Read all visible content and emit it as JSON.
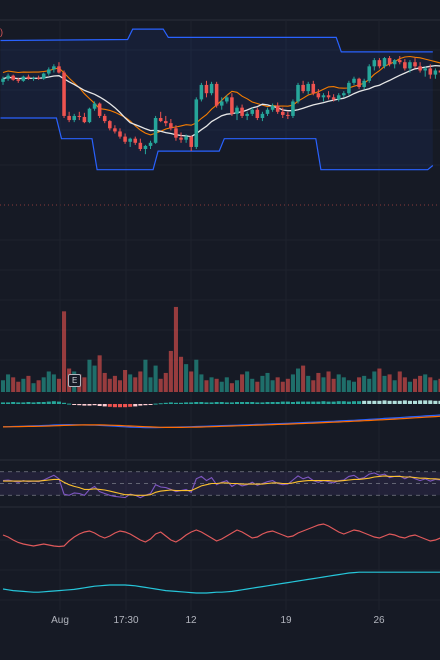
{
  "legend_fragment": ")",
  "earnings_marker": "E",
  "x_axis_labels": [
    "Aug",
    "17:30",
    "12",
    "19",
    "26"
  ],
  "colors": {
    "background": "#161a25",
    "up": "#26a69a",
    "down": "#ef5350",
    "bollinger_band": "#2962ff",
    "basis_line": "#e6e6e6",
    "envelope": "#f57c00",
    "rsi_line": "#7e57c2",
    "rsi_signal": "#fbc02d",
    "oscillator_red": "#e0595b",
    "oscillator_teal": "#26c6da",
    "macd_blue": "#2962ff",
    "macd_orange": "#ff6d00"
  },
  "chart_data": [
    {
      "type": "candlestick",
      "panel": "price",
      "note": "prices in relative units (no price scale visible)",
      "candles": [
        [
          95,
          100,
          92,
          98
        ],
        [
          98,
          103,
          96,
          101
        ],
        [
          101,
          102,
          96,
          97
        ],
        [
          97,
          99,
          94,
          96
        ],
        [
          96,
          101,
          95,
          100
        ],
        [
          100,
          102,
          97,
          98
        ],
        [
          98,
          100,
          96,
          99
        ],
        [
          99,
          101,
          97,
          98
        ],
        [
          98,
          104,
          97,
          103
        ],
        [
          103,
          109,
          101,
          107
        ],
        [
          107,
          112,
          104,
          110
        ],
        [
          110,
          114,
          103,
          104
        ],
        [
          104,
          106,
          60,
          62
        ],
        [
          62,
          66,
          56,
          58
        ],
        [
          58,
          64,
          56,
          62
        ],
        [
          62,
          66,
          58,
          61
        ],
        [
          61,
          65,
          55,
          56
        ],
        [
          56,
          70,
          55,
          69
        ],
        [
          69,
          76,
          67,
          74
        ],
        [
          74,
          75,
          60,
          62
        ],
        [
          62,
          64,
          55,
          57
        ],
        [
          57,
          58,
          48,
          50
        ],
        [
          50,
          53,
          45,
          47
        ],
        [
          47,
          50,
          40,
          42
        ],
        [
          42,
          45,
          35,
          37
        ],
        [
          37,
          41,
          32,
          40
        ],
        [
          40,
          42,
          34,
          36
        ],
        [
          36,
          40,
          28,
          30
        ],
        [
          30,
          34,
          25,
          33
        ],
        [
          33,
          38,
          30,
          36
        ],
        [
          36,
          62,
          35,
          60
        ],
        [
          60,
          66,
          56,
          57
        ],
        [
          57,
          62,
          52,
          55
        ],
        [
          55,
          59,
          48,
          50
        ],
        [
          50,
          53,
          38,
          41
        ],
        [
          41,
          46,
          36,
          39
        ],
        [
          39,
          44,
          36,
          42
        ],
        [
          42,
          43,
          28,
          32
        ],
        [
          32,
          80,
          30,
          78
        ],
        [
          78,
          94,
          76,
          92
        ],
        [
          92,
          96,
          80,
          84
        ],
        [
          84,
          95,
          82,
          93
        ],
        [
          93,
          95,
          70,
          72
        ],
        [
          72,
          80,
          68,
          76
        ],
        [
          76,
          82,
          74,
          80
        ],
        [
          80,
          84,
          62,
          64
        ],
        [
          64,
          72,
          58,
          70
        ],
        [
          70,
          73,
          60,
          62
        ],
        [
          62,
          66,
          58,
          64
        ],
        [
          64,
          70,
          62,
          68
        ],
        [
          68,
          70,
          58,
          60
        ],
        [
          60,
          66,
          57,
          64
        ],
        [
          64,
          70,
          62,
          68
        ],
        [
          68,
          74,
          66,
          72
        ],
        [
          72,
          75,
          64,
          66
        ],
        [
          66,
          70,
          60,
          63
        ],
        [
          63,
          66,
          59,
          62
        ],
        [
          62,
          78,
          60,
          76
        ],
        [
          76,
          94,
          74,
          92
        ],
        [
          92,
          96,
          84,
          86
        ],
        [
          86,
          95,
          83,
          93
        ],
        [
          93,
          96,
          82,
          84
        ],
        [
          84,
          88,
          78,
          80
        ],
        [
          80,
          84,
          76,
          82
        ],
        [
          82,
          86,
          78,
          80
        ],
        [
          80,
          83,
          76,
          78
        ],
        [
          78,
          84,
          76,
          82
        ],
        [
          82,
          86,
          80,
          84
        ],
        [
          84,
          96,
          82,
          94
        ],
        [
          94,
          100,
          92,
          98
        ],
        [
          98,
          99,
          88,
          90
        ],
        [
          90,
          98,
          88,
          96
        ],
        [
          96,
          112,
          94,
          110
        ],
        [
          110,
          118,
          106,
          116
        ],
        [
          116,
          118,
          108,
          110
        ],
        [
          110,
          119,
          108,
          118
        ],
        [
          118,
          120,
          110,
          112
        ],
        [
          112,
          117,
          108,
          116
        ],
        [
          116,
          120,
          112,
          114
        ],
        [
          114,
          117,
          106,
          108
        ],
        [
          108,
          116,
          104,
          114
        ],
        [
          114,
          118,
          108,
          110
        ],
        [
          110,
          114,
          104,
          106
        ],
        [
          106,
          110,
          100,
          108
        ],
        [
          108,
          112,
          98,
          102
        ],
        [
          102,
          108,
          98,
          106
        ],
        [
          106,
          110,
          100,
          104
        ]
      ],
      "bollinger": {
        "upper": [
          [
            0,
            135
          ],
          [
            25,
            136
          ],
          [
            26,
            146
          ],
          [
            32,
            146
          ],
          [
            33,
            138
          ],
          [
            45,
            138
          ],
          [
            46,
            138
          ],
          [
            66,
            138
          ],
          [
            67,
            124
          ],
          [
            84,
            124
          ],
          [
            85,
            124
          ]
        ],
        "lower": [
          [
            0,
            60
          ],
          [
            11,
            60
          ],
          [
            12,
            40
          ],
          [
            18,
            40
          ],
          [
            19,
            10
          ],
          [
            30,
            10
          ],
          [
            31,
            28
          ],
          [
            43,
            28
          ],
          [
            44,
            40
          ],
          [
            62,
            40
          ],
          [
            63,
            10
          ],
          [
            84,
            10
          ],
          [
            85,
            14
          ]
        ]
      }
    },
    {
      "type": "bar",
      "panel": "volume",
      "values": [
        8,
        12,
        10,
        7,
        9,
        11,
        6,
        8,
        10,
        14,
        12,
        9,
        55,
        16,
        14,
        12,
        10,
        22,
        18,
        25,
        13,
        9,
        11,
        8,
        15,
        12,
        10,
        14,
        22,
        10,
        18,
        9,
        13,
        28,
        58,
        24,
        19,
        14,
        22,
        12,
        8,
        10,
        9,
        7,
        10,
        6,
        8,
        12,
        14,
        9,
        7,
        11,
        13,
        8,
        10,
        7,
        9,
        12,
        16,
        18,
        11,
        8,
        13,
        10,
        14,
        9,
        12,
        10,
        8,
        7,
        10,
        11,
        9,
        14,
        16,
        11,
        12,
        8,
        14,
        10,
        7,
        9,
        11,
        12,
        10,
        8,
        9
      ]
    },
    {
      "type": "bar",
      "panel": "histogram",
      "values": [
        0.4,
        0.4,
        0.5,
        0.4,
        0.4,
        0.5,
        0.4,
        0.5,
        0.5,
        0.6,
        0.7,
        0.6,
        0.3,
        0.1,
        -0.2,
        -0.3,
        -0.4,
        -0.4,
        -0.3,
        -0.5,
        -0.6,
        -0.7,
        -0.8,
        -0.8,
        -0.8,
        -0.7,
        -0.6,
        -0.4,
        -0.3,
        -0.1,
        0.1,
        0.2,
        0.3,
        0.4,
        0.3,
        0.3,
        0.4,
        0.4,
        0.5,
        0.5,
        0.4,
        0.4,
        0.5,
        0.5,
        0.4,
        0.4,
        0.5,
        0.5,
        0.5,
        0.5,
        0.4,
        0.4,
        0.5,
        0.5,
        0.5,
        0.6,
        0.6,
        0.5,
        0.6,
        0.6,
        0.6,
        0.6,
        0.6,
        0.7,
        0.6,
        0.6,
        0.7,
        0.7,
        0.6,
        0.7,
        0.7,
        0.8,
        0.8,
        0.8,
        0.8,
        0.9,
        0.8,
        0.8,
        0.8,
        0.9,
        0.8,
        0.8,
        0.9,
        0.9,
        0.9,
        0.8,
        0.8
      ]
    },
    {
      "type": "line",
      "panel": "rsi",
      "levels": [
        70,
        50,
        30
      ],
      "series": [
        {
          "values": [
            55,
            56,
            54,
            52,
            55,
            53,
            54,
            53,
            56,
            60,
            64,
            58,
            32,
            30,
            34,
            33,
            30,
            40,
            45,
            36,
            33,
            30,
            28,
            27,
            26,
            32,
            30,
            26,
            30,
            33,
            48,
            44,
            43,
            40,
            36,
            38,
            40,
            35,
            58,
            62,
            55,
            60,
            48,
            52,
            55,
            45,
            50,
            46,
            48,
            52,
            47,
            50,
            53,
            55,
            50,
            48,
            49,
            56,
            63,
            58,
            61,
            55,
            52,
            55,
            53,
            51,
            55,
            56,
            62,
            64,
            58,
            60,
            66,
            68,
            64,
            66,
            60,
            62,
            63,
            58,
            62,
            58,
            55,
            58,
            54,
            57,
            56
          ]
        },
        {
          "values": [
            54,
            54,
            54,
            54,
            54,
            54,
            54,
            54,
            55,
            56,
            57,
            57,
            52,
            48,
            45,
            43,
            40,
            40,
            41,
            40,
            39,
            37,
            35,
            33,
            31,
            31,
            30,
            30,
            30,
            31,
            35,
            37,
            38,
            39,
            38,
            38,
            38,
            38,
            42,
            46,
            48,
            50,
            50,
            51,
            51,
            50,
            50,
            49,
            49,
            49,
            49,
            49,
            50,
            51,
            51,
            50,
            50,
            51,
            53,
            54,
            55,
            55,
            55,
            55,
            55,
            54,
            54,
            55,
            56,
            57,
            57,
            58,
            59,
            61,
            62,
            63,
            62,
            62,
            62,
            61,
            61,
            60,
            59,
            59,
            58,
            58,
            57
          ]
        }
      ]
    },
    {
      "type": "line",
      "panel": "oscillator",
      "series": [
        {
          "values": [
            50,
            46,
            40,
            35,
            32,
            30,
            28,
            30,
            32,
            30,
            28,
            27,
            28,
            38,
            46,
            52,
            56,
            58,
            54,
            48,
            44,
            48,
            54,
            58,
            56,
            52,
            46,
            40,
            36,
            42,
            52,
            56,
            48,
            40,
            36,
            42,
            50,
            56,
            60,
            56,
            50,
            44,
            38,
            42,
            48,
            54,
            60,
            56,
            50,
            44,
            46,
            52,
            56,
            58,
            54,
            50,
            46,
            48,
            54,
            58,
            62,
            66,
            70,
            72,
            68,
            62,
            56,
            52,
            56,
            60,
            58,
            54,
            50,
            46,
            44,
            48,
            52,
            50,
            46,
            44,
            48,
            50,
            46,
            42,
            38,
            40,
            44
          ]
        }
      ]
    },
    {
      "type": "line",
      "panel": "slow_line",
      "series": [
        {
          "values": [
            40,
            38,
            36,
            35,
            34,
            33,
            32,
            32,
            33,
            34,
            35,
            36,
            37,
            38,
            39,
            41,
            43,
            45,
            47,
            48,
            49,
            50,
            50,
            50,
            50,
            49,
            48,
            46,
            44,
            42,
            40,
            38,
            36,
            35,
            34,
            33,
            32,
            31,
            30,
            30,
            30,
            31,
            32,
            32,
            33,
            34,
            36,
            38,
            40,
            42,
            44,
            46,
            48,
            50,
            52,
            54,
            56,
            58,
            60,
            62,
            64,
            66,
            68,
            70,
            72,
            74,
            76,
            78,
            80,
            81,
            82,
            82,
            82,
            82,
            82,
            82,
            82,
            82,
            82,
            82,
            82,
            82,
            82,
            82,
            82,
            82,
            82
          ]
        }
      ]
    }
  ]
}
